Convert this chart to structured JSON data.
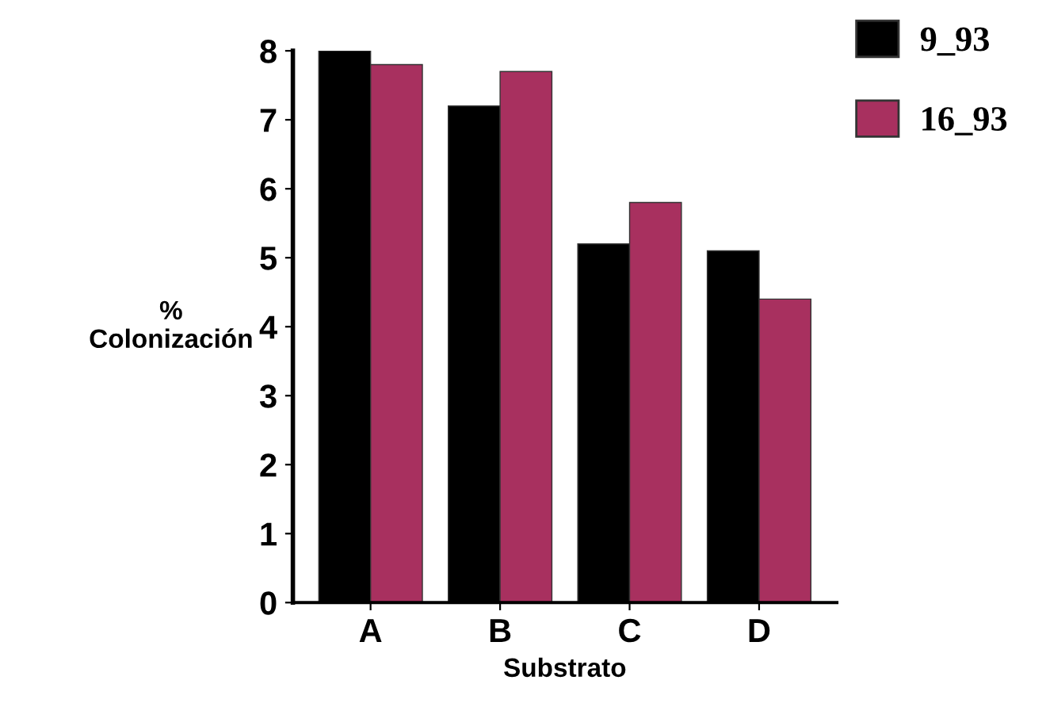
{
  "chart_data": {
    "type": "bar",
    "xlabel": "Substrato",
    "ylabel": "%\nColonización",
    "categories": [
      "A",
      "B",
      "C",
      "D"
    ],
    "series": [
      {
        "name": "9_93",
        "color": "#000000",
        "values": [
          8.0,
          7.2,
          5.2,
          5.1
        ]
      },
      {
        "name": "16_93",
        "color": "#a8305f",
        "values": [
          7.8,
          7.7,
          5.8,
          4.4
        ]
      }
    ],
    "ylim": [
      0,
      8
    ],
    "yticks": [
      0,
      1,
      2,
      3,
      4,
      5,
      6,
      7,
      8
    ],
    "grid": false,
    "legend": "top right"
  }
}
